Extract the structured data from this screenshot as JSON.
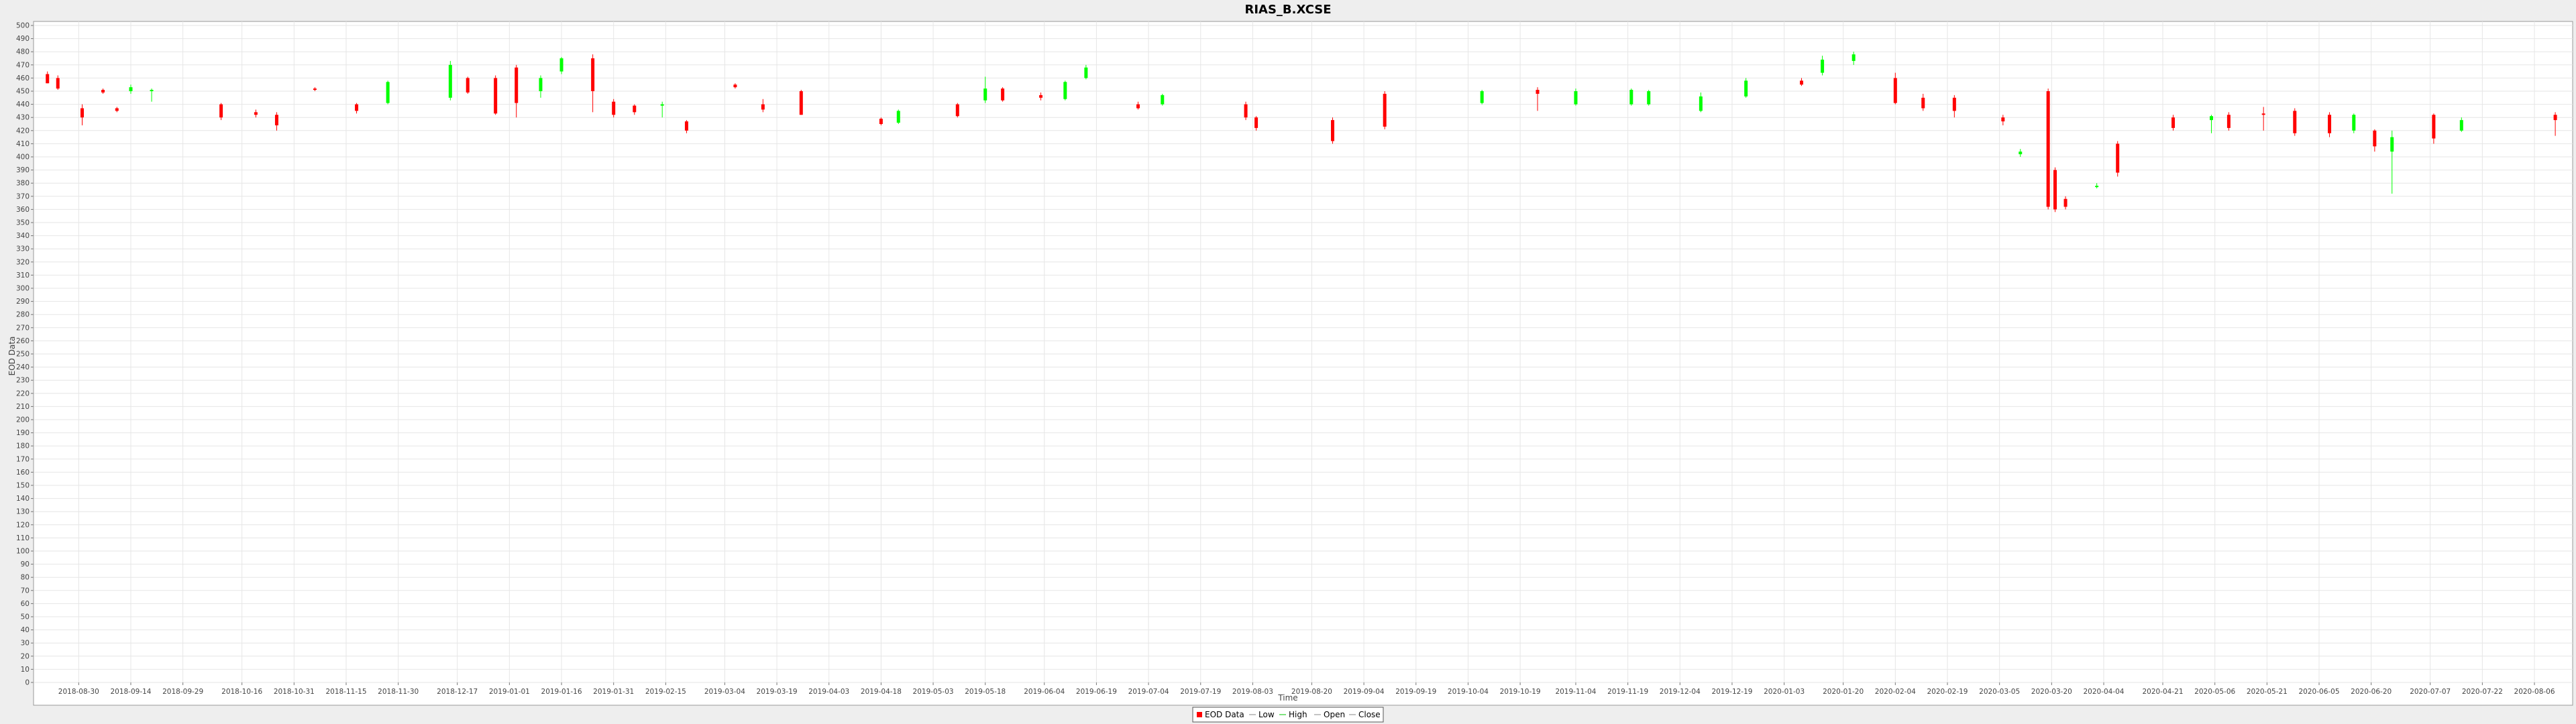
{
  "chart_data": {
    "type": "candlestick",
    "title": "RIAS_B.XCSE",
    "xlabel": "Time",
    "ylabel": "EOD Data",
    "ylim": [
      0,
      500
    ],
    "y_tick_step": 10,
    "grid": true,
    "x_range": [
      "2018-08-17",
      "2020-08-17"
    ],
    "x_ticks": [
      "2018-08-30",
      "2018-09-14",
      "2018-09-29",
      "2018-10-16",
      "2018-10-31",
      "2018-11-15",
      "2018-11-30",
      "2018-12-17",
      "2019-01-01",
      "2019-01-16",
      "2019-01-31",
      "2019-02-15",
      "2019-03-04",
      "2019-03-19",
      "2019-04-03",
      "2019-04-18",
      "2019-05-03",
      "2019-05-18",
      "2019-06-04",
      "2019-06-19",
      "2019-07-04",
      "2019-07-19",
      "2019-08-03",
      "2019-08-20",
      "2019-09-04",
      "2019-09-19",
      "2019-10-04",
      "2019-10-19",
      "2019-11-04",
      "2019-11-19",
      "2019-12-04",
      "2019-12-19",
      "2020-01-03",
      "2020-01-20",
      "2020-02-04",
      "2020-02-19",
      "2020-03-05",
      "2020-03-20",
      "2020-04-04",
      "2020-04-21",
      "2020-05-06",
      "2020-05-21",
      "2020-06-05",
      "2020-06-20",
      "2020-07-07",
      "2020-07-22",
      "2020-08-06"
    ],
    "legend": {
      "placement": "bottom-center",
      "entries": [
        "EOD Data",
        "Low",
        "High",
        "Open",
        "Close"
      ]
    },
    "colors": {
      "up": "#00ff00",
      "down": "#ff0000",
      "volume": "#c8c8c8"
    },
    "series": [
      {
        "x": "2018-08-21",
        "open": 463,
        "high": 465,
        "low": 456,
        "close": 456
      },
      {
        "x": "2018-08-24",
        "open": 460,
        "high": 462,
        "low": 451,
        "close": 452
      },
      {
        "x": "2018-08-31",
        "open": 437,
        "high": 440,
        "low": 424,
        "close": 430
      },
      {
        "x": "2018-09-06",
        "open": 451,
        "high": 452,
        "low": 448,
        "close": 449
      },
      {
        "x": "2018-09-10",
        "open": 437,
        "high": 438,
        "low": 434,
        "close": 435
      },
      {
        "x": "2018-09-14",
        "open": 450,
        "high": 455,
        "low": 448,
        "close": 453
      },
      {
        "x": "2018-09-20",
        "open": 451,
        "high": 452,
        "low": 442,
        "close": 451
      },
      {
        "x": "2018-10-10",
        "open": 440,
        "high": 441,
        "low": 428,
        "close": 430
      },
      {
        "x": "2018-10-20",
        "open": 434,
        "high": 436,
        "low": 430,
        "close": 432
      },
      {
        "x": "2018-10-26",
        "open": 432,
        "high": 434,
        "low": 420,
        "close": 424
      },
      {
        "x": "2018-11-06",
        "open": 452,
        "high": 453,
        "low": 450,
        "close": 451
      },
      {
        "x": "2018-11-18",
        "open": 440,
        "high": 441,
        "low": 433,
        "close": 435
      },
      {
        "x": "2018-11-27",
        "open": 441,
        "high": 458,
        "low": 440,
        "close": 457
      },
      {
        "x": "2018-12-15",
        "open": 445,
        "high": 473,
        "low": 443,
        "close": 470
      },
      {
        "x": "2018-12-20",
        "open": 460,
        "high": 461,
        "low": 448,
        "close": 449
      },
      {
        "x": "2018-12-28",
        "open": 460,
        "high": 462,
        "low": 432,
        "close": 433
      },
      {
        "x": "2019-01-03",
        "open": 468,
        "high": 470,
        "low": 430,
        "close": 441
      },
      {
        "x": "2019-01-10",
        "open": 450,
        "high": 462,
        "low": 445,
        "close": 460
      },
      {
        "x": "2019-01-16",
        "open": 465,
        "high": 476,
        "low": 463,
        "close": 475
      },
      {
        "x": "2019-01-25",
        "open": 475,
        "high": 478,
        "low": 434,
        "close": 450
      },
      {
        "x": "2019-01-31",
        "open": 442,
        "high": 444,
        "low": 430,
        "close": 432
      },
      {
        "x": "2019-02-06",
        "open": 439,
        "high": 440,
        "low": 432,
        "close": 434
      },
      {
        "x": "2019-02-14",
        "open": 440,
        "high": 442,
        "low": 430,
        "close": 440
      },
      {
        "x": "2019-02-21",
        "open": 427,
        "high": 428,
        "low": 418,
        "close": 420
      },
      {
        "x": "2019-03-07",
        "open": 455,
        "high": 456,
        "low": 452,
        "close": 453
      },
      {
        "x": "2019-03-15",
        "open": 440,
        "high": 444,
        "low": 434,
        "close": 436
      },
      {
        "x": "2019-03-26",
        "open": 450,
        "high": 451,
        "low": 432,
        "close": 432
      },
      {
        "x": "2019-04-18",
        "open": 429,
        "high": 430,
        "low": 424,
        "close": 425
      },
      {
        "x": "2019-04-23",
        "open": 426,
        "high": 436,
        "low": 425,
        "close": 435
      },
      {
        "x": "2019-05-10",
        "open": 440,
        "high": 441,
        "low": 430,
        "close": 431
      },
      {
        "x": "2019-05-18",
        "open": 443,
        "high": 461,
        "low": 441,
        "close": 452
      },
      {
        "x": "2019-05-23",
        "open": 452,
        "high": 453,
        "low": 442,
        "close": 443
      },
      {
        "x": "2019-06-03",
        "open": 447,
        "high": 449,
        "low": 443,
        "close": 445
      },
      {
        "x": "2019-06-10",
        "open": 444,
        "high": 458,
        "low": 443,
        "close": 457
      },
      {
        "x": "2019-06-16",
        "open": 460,
        "high": 470,
        "low": 459,
        "close": 468
      },
      {
        "x": "2019-07-01",
        "open": 440,
        "high": 442,
        "low": 436,
        "close": 437
      },
      {
        "x": "2019-07-08",
        "open": 440,
        "high": 448,
        "low": 439,
        "close": 447
      },
      {
        "x": "2019-08-01",
        "open": 440,
        "high": 442,
        "low": 428,
        "close": 430
      },
      {
        "x": "2019-08-04",
        "open": 430,
        "high": 431,
        "low": 420,
        "close": 422
      },
      {
        "x": "2019-08-26",
        "open": 428,
        "high": 430,
        "low": 410,
        "close": 412
      },
      {
        "x": "2019-09-10",
        "open": 448,
        "high": 450,
        "low": 421,
        "close": 423
      },
      {
        "x": "2019-10-08",
        "open": 441,
        "high": 451,
        "low": 440,
        "close": 450
      },
      {
        "x": "2019-10-24",
        "open": 451,
        "high": 453,
        "low": 435,
        "close": 448
      },
      {
        "x": "2019-11-04",
        "open": 440,
        "high": 452,
        "low": 439,
        "close": 450
      },
      {
        "x": "2019-11-20",
        "open": 440,
        "high": 452,
        "low": 439,
        "close": 451
      },
      {
        "x": "2019-11-25",
        "open": 440,
        "high": 451,
        "low": 439,
        "close": 450
      },
      {
        "x": "2019-12-10",
        "open": 435,
        "high": 449,
        "low": 434,
        "close": 446
      },
      {
        "x": "2019-12-23",
        "open": 446,
        "high": 460,
        "low": 445,
        "close": 458
      },
      {
        "x": "2020-01-08",
        "open": 458,
        "high": 460,
        "low": 454,
        "close": 455
      },
      {
        "x": "2020-01-14",
        "open": 464,
        "high": 477,
        "low": 462,
        "close": 474
      },
      {
        "x": "2020-01-23",
        "open": 473,
        "high": 480,
        "low": 470,
        "close": 478
      },
      {
        "x": "2020-02-04",
        "open": 460,
        "high": 464,
        "low": 440,
        "close": 441
      },
      {
        "x": "2020-02-12",
        "open": 445,
        "high": 448,
        "low": 435,
        "close": 437
      },
      {
        "x": "2020-02-21",
        "open": 445,
        "high": 447,
        "low": 430,
        "close": 435
      },
      {
        "x": "2020-03-06",
        "open": 430,
        "high": 432,
        "low": 424,
        "close": 427
      },
      {
        "x": "2020-03-11",
        "open": 402,
        "high": 406,
        "low": 400,
        "close": 404
      },
      {
        "x": "2020-03-19",
        "open": 450,
        "high": 452,
        "low": 360,
        "close": 362
      },
      {
        "x": "2020-03-21",
        "open": 390,
        "high": 392,
        "low": 358,
        "close": 360
      },
      {
        "x": "2020-03-24",
        "open": 368,
        "high": 370,
        "low": 360,
        "close": 362
      },
      {
        "x": "2020-04-02",
        "open": 377,
        "high": 380,
        "low": 376,
        "close": 378
      },
      {
        "x": "2020-04-08",
        "open": 410,
        "high": 412,
        "low": 385,
        "close": 388
      },
      {
        "x": "2020-04-24",
        "open": 430,
        "high": 432,
        "low": 420,
        "close": 422
      },
      {
        "x": "2020-05-05",
        "open": 428,
        "high": 432,
        "low": 418,
        "close": 431
      },
      {
        "x": "2020-05-10",
        "open": 432,
        "high": 434,
        "low": 420,
        "close": 422
      },
      {
        "x": "2020-05-20",
        "open": 433,
        "high": 438,
        "low": 420,
        "close": 432
      },
      {
        "x": "2020-05-29",
        "open": 435,
        "high": 437,
        "low": 416,
        "close": 418
      },
      {
        "x": "2020-06-08",
        "open": 432,
        "high": 434,
        "low": 415,
        "close": 418
      },
      {
        "x": "2020-06-15",
        "open": 420,
        "high": 433,
        "low": 418,
        "close": 432
      },
      {
        "x": "2020-06-21",
        "open": 420,
        "high": 421,
        "low": 404,
        "close": 408
      },
      {
        "x": "2020-06-26",
        "open": 404,
        "high": 420,
        "low": 372,
        "close": 415
      },
      {
        "x": "2020-07-08",
        "open": 432,
        "high": 433,
        "low": 410,
        "close": 414
      },
      {
        "x": "2020-07-16",
        "open": 420,
        "high": 430,
        "low": 419,
        "close": 428
      },
      {
        "x": "2020-08-12",
        "open": 432,
        "high": 434,
        "low": 416,
        "close": 428
      }
    ]
  }
}
